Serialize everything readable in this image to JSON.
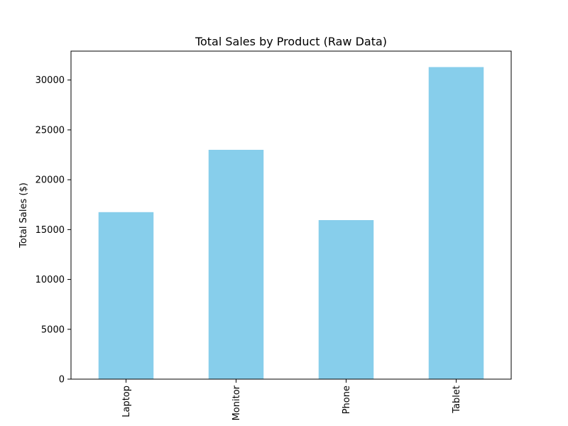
{
  "chart_data": {
    "type": "bar",
    "title": "Total Sales by Product (Raw Data)",
    "xlabel": "",
    "ylabel": "Total Sales ($)",
    "categories": [
      "Laptop",
      "Monitor",
      "Phone",
      "Tablet"
    ],
    "values": [
      16750,
      23000,
      15950,
      31300
    ],
    "ylim": [
      0,
      32900
    ],
    "yticks": [
      0,
      5000,
      10000,
      15000,
      20000,
      25000,
      30000
    ],
    "ytick_labels": [
      "0",
      "5000",
      "10000",
      "15000",
      "20000",
      "25000",
      "30000"
    ],
    "grid": false,
    "legend": "none",
    "bar_color": "#87CEEB",
    "x_tick_rotation": "vertical"
  }
}
